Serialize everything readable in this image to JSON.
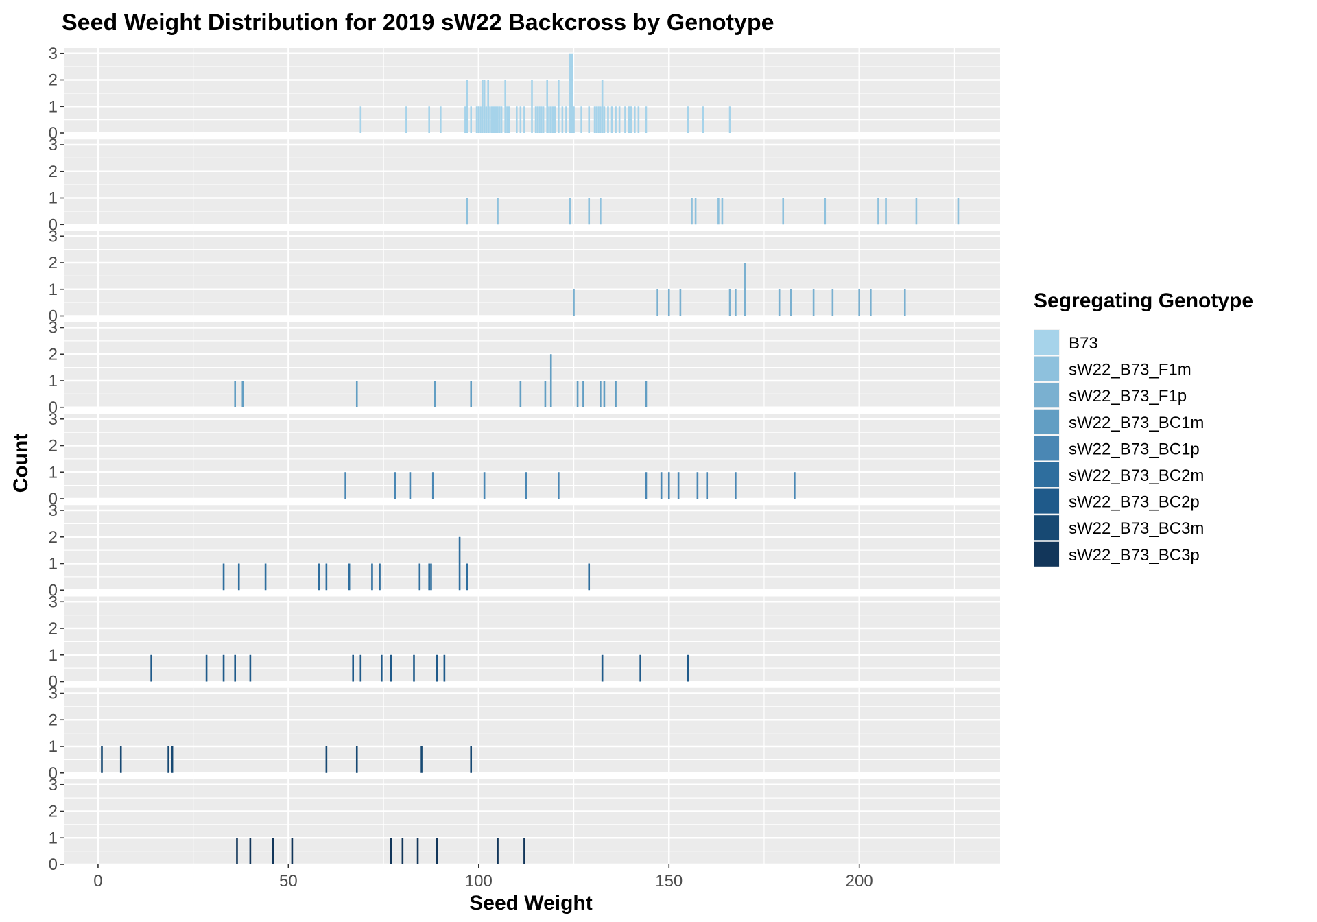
{
  "chart_data": {
    "type": "histogram-facets",
    "title": "Seed Weight Distribution for 2019 sW22 Backcross by Genotype",
    "xlabel": "Seed Weight",
    "ylabel": "Count",
    "xlim": [
      -9,
      237
    ],
    "ylim": [
      0,
      3.2
    ],
    "x_ticks": [
      0,
      50,
      100,
      150,
      200
    ],
    "x_tick_labels": [
      "0",
      "50",
      "100",
      "150",
      "200"
    ],
    "y_ticks": [
      0,
      1,
      2,
      3
    ],
    "y_tick_labels": [
      "0",
      "1",
      "2",
      "3"
    ],
    "legend": {
      "title": "Segregating Genotype",
      "placement": "right"
    },
    "series": [
      {
        "name": "B73",
        "color": "#A6D3EA",
        "bars": [
          [
            69,
            1
          ],
          [
            81,
            1
          ],
          [
            87,
            1
          ],
          [
            90,
            1
          ],
          [
            96.5,
            1
          ],
          [
            97,
            2
          ],
          [
            98,
            1
          ],
          [
            99.5,
            1
          ],
          [
            100,
            1
          ],
          [
            100.5,
            1
          ],
          [
            101,
            2
          ],
          [
            101.5,
            2
          ],
          [
            102,
            1
          ],
          [
            102.5,
            2
          ],
          [
            103,
            1
          ],
          [
            103.5,
            1
          ],
          [
            104,
            1
          ],
          [
            104.5,
            1
          ],
          [
            105,
            1
          ],
          [
            105.5,
            1
          ],
          [
            106,
            1
          ],
          [
            107,
            2
          ],
          [
            107.5,
            1
          ],
          [
            108,
            1
          ],
          [
            110,
            1
          ],
          [
            111,
            1
          ],
          [
            112,
            1
          ],
          [
            114,
            2
          ],
          [
            115,
            1
          ],
          [
            115.5,
            1
          ],
          [
            116,
            1
          ],
          [
            116.5,
            1
          ],
          [
            117,
            1
          ],
          [
            118,
            2
          ],
          [
            118.5,
            1
          ],
          [
            119,
            1
          ],
          [
            119.5,
            1
          ],
          [
            120,
            1
          ],
          [
            121,
            2
          ],
          [
            122,
            1
          ],
          [
            123,
            1
          ],
          [
            124,
            3
          ],
          [
            124.5,
            3
          ],
          [
            125,
            1
          ],
          [
            127,
            1
          ],
          [
            129,
            1
          ],
          [
            130.5,
            1
          ],
          [
            131,
            1
          ],
          [
            131.5,
            1
          ],
          [
            132,
            1
          ],
          [
            132.5,
            2
          ],
          [
            133,
            1
          ],
          [
            134,
            1
          ],
          [
            135,
            1
          ],
          [
            136,
            1
          ],
          [
            137,
            1
          ],
          [
            138.5,
            1
          ],
          [
            139.5,
            1
          ],
          [
            140,
            1
          ],
          [
            141,
            1
          ],
          [
            142,
            1
          ],
          [
            144,
            1
          ],
          [
            155,
            1
          ],
          [
            159,
            1
          ],
          [
            166,
            1
          ]
        ]
      },
      {
        "name": "sW22_B73_F1m",
        "color": "#8EC1DD",
        "bars": [
          [
            97,
            1
          ],
          [
            105,
            1
          ],
          [
            124,
            1
          ],
          [
            129,
            1
          ],
          [
            132,
            1
          ],
          [
            156,
            1
          ],
          [
            157,
            1
          ],
          [
            163,
            1
          ],
          [
            164,
            1
          ],
          [
            180,
            1
          ],
          [
            191,
            1
          ],
          [
            205,
            1
          ],
          [
            207,
            1
          ],
          [
            215,
            1
          ],
          [
            226,
            1
          ]
        ]
      },
      {
        "name": "sW22_B73_F1p",
        "color": "#7AB0D0",
        "bars": [
          [
            125,
            1
          ],
          [
            147,
            1
          ],
          [
            150,
            1
          ],
          [
            153,
            1
          ],
          [
            166,
            1
          ],
          [
            167.5,
            1
          ],
          [
            170,
            2
          ],
          [
            179,
            1
          ],
          [
            182,
            1
          ],
          [
            188,
            1
          ],
          [
            193,
            1
          ],
          [
            200,
            1
          ],
          [
            203,
            1
          ],
          [
            212,
            1
          ]
        ]
      },
      {
        "name": "sW22_B73_BC1m",
        "color": "#629EC3",
        "bars": [
          [
            36,
            1
          ],
          [
            38,
            1
          ],
          [
            68,
            1
          ],
          [
            88.5,
            1
          ],
          [
            98,
            1
          ],
          [
            111,
            1
          ],
          [
            117.5,
            1
          ],
          [
            119,
            2
          ],
          [
            126,
            1
          ],
          [
            127.5,
            1
          ],
          [
            132,
            1
          ],
          [
            133,
            1
          ],
          [
            136,
            1
          ],
          [
            144,
            1
          ]
        ]
      },
      {
        "name": "sW22_B73_BC1p",
        "color": "#4A87B4",
        "bars": [
          [
            65,
            1
          ],
          [
            78,
            1
          ],
          [
            82,
            1
          ],
          [
            88,
            1
          ],
          [
            101.5,
            1
          ],
          [
            112.5,
            1
          ],
          [
            121,
            1
          ],
          [
            144,
            1
          ],
          [
            148,
            1
          ],
          [
            150,
            1
          ],
          [
            152.5,
            1
          ],
          [
            157.5,
            1
          ],
          [
            160,
            1
          ],
          [
            167.5,
            1
          ],
          [
            183,
            1
          ]
        ]
      },
      {
        "name": "sW22_B73_BC2m",
        "color": "#2E6E9E",
        "bars": [
          [
            33,
            1
          ],
          [
            37,
            1
          ],
          [
            44,
            1
          ],
          [
            58,
            1
          ],
          [
            60,
            1
          ],
          [
            66,
            1
          ],
          [
            72,
            1
          ],
          [
            74,
            1
          ],
          [
            84.5,
            1
          ],
          [
            87,
            1
          ],
          [
            87.5,
            1
          ],
          [
            95,
            2
          ],
          [
            97,
            1
          ],
          [
            129,
            1
          ]
        ]
      },
      {
        "name": "sW22_B73_BC2p",
        "color": "#1F5A8A",
        "bars": [
          [
            14,
            1
          ],
          [
            28.5,
            1
          ],
          [
            33,
            1
          ],
          [
            36,
            1
          ],
          [
            40,
            1
          ],
          [
            67,
            1
          ],
          [
            69,
            1
          ],
          [
            74.5,
            1
          ],
          [
            77,
            1
          ],
          [
            83,
            1
          ],
          [
            89,
            1
          ],
          [
            91,
            1
          ],
          [
            132.5,
            1
          ],
          [
            142.5,
            1
          ],
          [
            155,
            1
          ]
        ]
      },
      {
        "name": "sW22_B73_BC3m",
        "color": "#174973",
        "bars": [
          [
            1,
            1
          ],
          [
            6,
            1
          ],
          [
            18.5,
            1
          ],
          [
            19.5,
            1
          ],
          [
            60,
            1
          ],
          [
            68,
            1
          ],
          [
            85,
            1
          ],
          [
            98,
            1
          ]
        ]
      },
      {
        "name": "sW22_B73_BC3p",
        "color": "#12365A",
        "bars": [
          [
            36.5,
            1
          ],
          [
            40,
            1
          ],
          [
            46,
            1
          ],
          [
            51,
            1
          ],
          [
            77,
            1
          ],
          [
            80,
            1
          ],
          [
            84,
            1
          ],
          [
            89,
            1
          ],
          [
            105,
            1
          ],
          [
            112,
            1
          ]
        ]
      }
    ]
  }
}
